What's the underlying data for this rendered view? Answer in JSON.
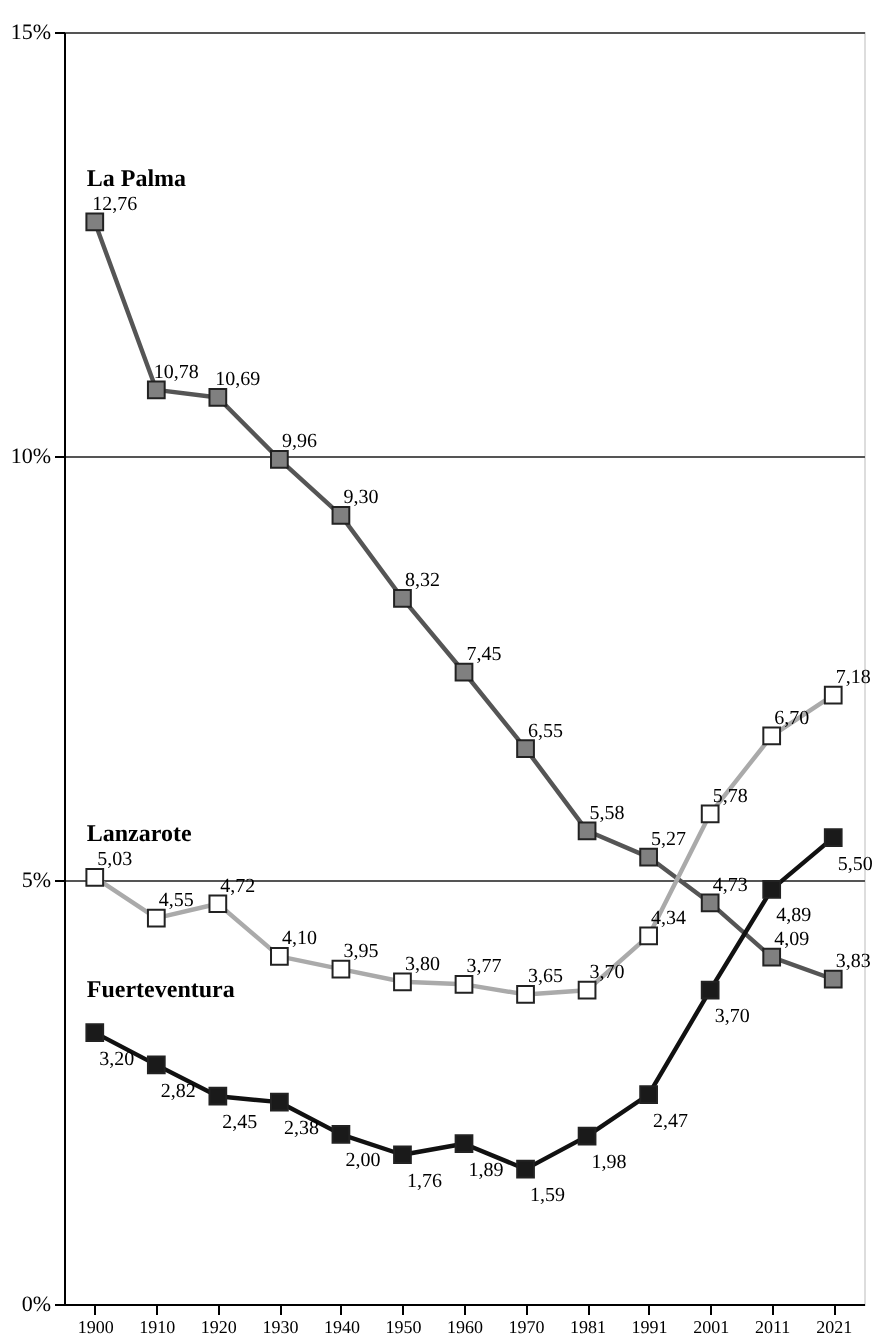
{
  "chart_data": {
    "type": "line",
    "categories": [
      "1900",
      "1910",
      "1920",
      "1930",
      "1940",
      "1950",
      "1960",
      "1970",
      "1981",
      "1991",
      "2001",
      "2011",
      "2021"
    ],
    "series": [
      {
        "name": "La Palma",
        "color": "#808080",
        "values": [
          12.76,
          10.78,
          10.69,
          9.96,
          9.3,
          8.32,
          7.45,
          6.55,
          5.58,
          5.27,
          4.73,
          4.09,
          3.83
        ],
        "value_labels": [
          "12,76",
          "10,78",
          "10,69",
          "9,96",
          "9,30",
          "8,32",
          "7,45",
          "6,55",
          "5,58",
          "5,27",
          "4,73",
          "4,09",
          "3,83"
        ]
      },
      {
        "name": "Lanzarote",
        "color": "#ffffff",
        "values": [
          5.03,
          4.55,
          4.72,
          4.1,
          3.95,
          3.8,
          3.77,
          3.65,
          3.7,
          4.34,
          5.78,
          6.7,
          7.18
        ],
        "value_labels": [
          "5,03",
          "4,55",
          "4,72",
          "4,10",
          "3,95",
          "3,80",
          "3,77",
          "3,65",
          "3,70",
          "4,34",
          "5,78",
          "6,70",
          "7,18"
        ]
      },
      {
        "name": "Fuerteventura",
        "color": "#1a1a1a",
        "values": [
          3.2,
          2.82,
          2.45,
          2.38,
          2.0,
          1.76,
          1.89,
          1.59,
          1.98,
          2.47,
          3.7,
          4.89,
          5.5
        ],
        "value_labels": [
          "3,20",
          "2,82",
          "2,45",
          "2,38",
          "2,00",
          "1,76",
          "1,89",
          "1,59",
          "1,98",
          "2,47",
          "3,70",
          "4,89",
          "5,50"
        ]
      }
    ],
    "ylim": [
      0,
      15
    ],
    "yticks": [
      {
        "value": 0,
        "label": "0%"
      },
      {
        "value": 5,
        "label": "5%"
      },
      {
        "value": 10,
        "label": "10%"
      },
      {
        "value": 15,
        "label": "15%"
      }
    ],
    "grid": "y",
    "marker": "square",
    "line_style": "solid"
  }
}
